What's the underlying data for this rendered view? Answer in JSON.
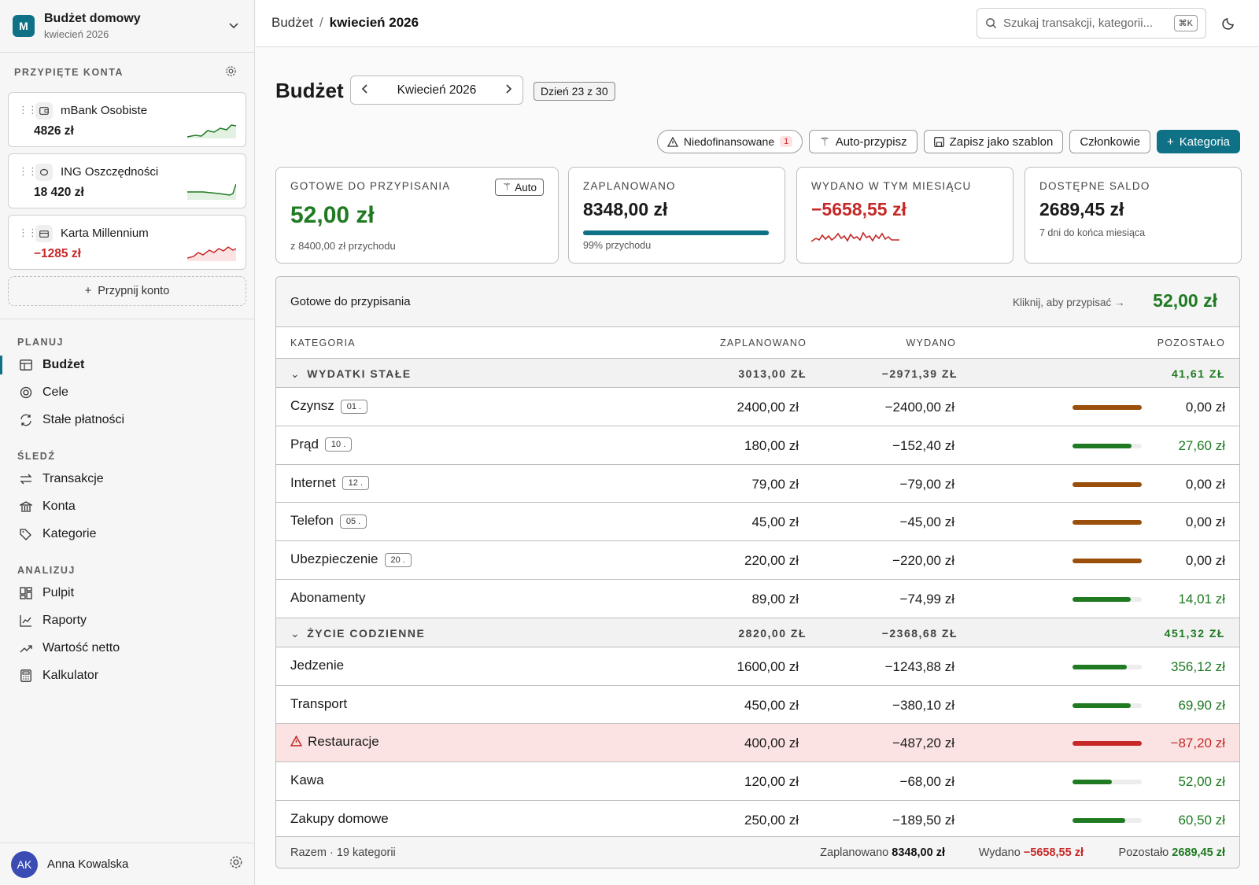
{
  "workspace": {
    "initial": "M",
    "name": "Budżet domowy",
    "period": "kwiecień 2026"
  },
  "pinned": {
    "title": "PRZYPIĘTE KONTA",
    "accounts": [
      {
        "name": "mBank Osobiste",
        "balance": "4826 zł",
        "trend": "up"
      },
      {
        "name": "ING Oszczędności",
        "balance": "18 420 zł",
        "trend": "flat-up"
      },
      {
        "name": "Karta Millennium",
        "balance": "−1285 zł",
        "trend": "negative"
      }
    ],
    "pin_label": "Przypnij konto"
  },
  "nav": [
    {
      "title": "PLANUJ",
      "items": [
        {
          "label": "Budżet",
          "icon": "table-icon",
          "active": true
        },
        {
          "label": "Cele",
          "icon": "target-icon"
        },
        {
          "label": "Stałe płatności",
          "icon": "repeat-icon"
        }
      ]
    },
    {
      "title": "ŚLEDŹ",
      "items": [
        {
          "label": "Transakcje",
          "icon": "arrows-icon"
        },
        {
          "label": "Konta",
          "icon": "bank-icon"
        },
        {
          "label": "Kategorie",
          "icon": "tag-icon"
        }
      ]
    },
    {
      "title": "ANALIZUJ",
      "items": [
        {
          "label": "Pulpit",
          "icon": "dashboard-icon"
        },
        {
          "label": "Raporty",
          "icon": "chart-icon"
        },
        {
          "label": "Wartość netto",
          "icon": "trend-icon"
        },
        {
          "label": "Kalkulator",
          "icon": "calculator-icon"
        }
      ]
    }
  ],
  "user": {
    "initials": "AK",
    "name": "Anna Kowalska"
  },
  "breadcrumb": {
    "root": "Budżet",
    "separator": "/",
    "current": "kwiecień 2026"
  },
  "search": {
    "placeholder": "Szukaj transakcji, kategorii...",
    "shortcut": "⌘K"
  },
  "page": {
    "title": "Budżet",
    "month": "Kwiecień 2026",
    "day": "Dzień 23 z 30"
  },
  "actions": {
    "underfunded": "Niedofinansowane",
    "underfunded_count": "1",
    "autoassign": "Auto-przypisz",
    "save_template": "Zapisz jako szablon",
    "members": "Członkowie",
    "add_category": "Kategoria"
  },
  "cards": {
    "ready": {
      "label": "GOTOWE DO PRZYPISANIA",
      "value": "52,00 zł",
      "sub": "z 8400,00 zł przychodu",
      "auto": "Auto"
    },
    "planned": {
      "label": "ZAPLANOWANO",
      "value": "8348,00 zł",
      "sub": "99% przychodu",
      "progress": 0.99
    },
    "spent": {
      "label": "WYDANO W TYM MIESIĄCU",
      "value": "−5658,55 zł"
    },
    "available": {
      "label": "DOSTĘPNE SALDO",
      "value": "2689,45 zł",
      "sub": "7 dni do końca miesiąca"
    }
  },
  "ready_row": {
    "label": "Gotowe do przypisania",
    "hint": "Kliknij, aby przypisać →",
    "amount": "52,00 zł"
  },
  "table": {
    "headers": {
      "category": "KATEGORIA",
      "planned": "ZAPLANOWANO",
      "spent": "WYDANO",
      "remaining": "POZOSTAŁO"
    },
    "groups": [
      {
        "name": "WYDATKI STAŁE",
        "planned": "3013,00 ZŁ",
        "spent": "−2971,39 ZŁ",
        "remaining": "41,61 ZŁ",
        "rows": [
          {
            "name": "Czynsz",
            "tag": "01 .",
            "planned": "2400,00 zł",
            "spent": "−2400,00 zł",
            "remaining": "0,00 zł",
            "status": "full",
            "used": 1.0
          },
          {
            "name": "Prąd",
            "tag": "10 .",
            "planned": "180,00 zł",
            "spent": "−152,40 zł",
            "remaining": "27,60 zł",
            "status": "ok",
            "used": 0.85
          },
          {
            "name": "Internet",
            "tag": "12 .",
            "planned": "79,00 zł",
            "spent": "−79,00 zł",
            "remaining": "0,00 zł",
            "status": "full",
            "used": 1.0
          },
          {
            "name": "Telefon",
            "tag": "05 .",
            "planned": "45,00 zł",
            "spent": "−45,00 zł",
            "remaining": "0,00 zł",
            "status": "full",
            "used": 1.0
          },
          {
            "name": "Ubezpieczenie",
            "tag": "20 .",
            "planned": "220,00 zł",
            "spent": "−220,00 zł",
            "remaining": "0,00 zł",
            "status": "full",
            "used": 1.0
          },
          {
            "name": "Abonamenty",
            "tag": "",
            "planned": "89,00 zł",
            "spent": "−74,99 zł",
            "remaining": "14,01 zł",
            "status": "ok",
            "used": 0.84
          }
        ]
      },
      {
        "name": "ŻYCIE CODZIENNE",
        "planned": "2820,00 ZŁ",
        "spent": "−2368,68 ZŁ",
        "remaining": "451,32 ZŁ",
        "rows": [
          {
            "name": "Jedzenie",
            "tag": "",
            "planned": "1600,00 zł",
            "spent": "−1243,88 zł",
            "remaining": "356,12 zł",
            "status": "ok",
            "used": 0.78
          },
          {
            "name": "Transport",
            "tag": "",
            "planned": "450,00 zł",
            "spent": "−380,10 zł",
            "remaining": "69,90 zł",
            "status": "ok",
            "used": 0.84
          },
          {
            "name": "Restauracje",
            "tag": "",
            "planned": "400,00 zł",
            "spent": "−487,20 zł",
            "remaining": "−87,20 zł",
            "status": "over",
            "used": 1.0
          },
          {
            "name": "Kawa",
            "tag": "",
            "planned": "120,00 zł",
            "spent": "−68,00 zł",
            "remaining": "52,00 zł",
            "status": "ok",
            "used": 0.57
          },
          {
            "name": "Zakupy domowe",
            "tag": "",
            "planned": "250,00 zł",
            "spent": "−189,50 zł",
            "remaining": "60,50 zł",
            "status": "ok",
            "used": 0.76
          }
        ]
      }
    ],
    "footer": {
      "count": "Razem · 19 kategorii",
      "planned_label": "Zaplanowano",
      "planned": "8348,00 zł",
      "spent_label": "Wydano",
      "spent": "−5658,55 zł",
      "remaining_label": "Pozostało",
      "remaining": "2689,45 zł"
    }
  },
  "colors": {
    "accent": "#0e7186",
    "positive": "#1f7a22",
    "negative": "#c62828",
    "full": "#9a4f0a"
  }
}
